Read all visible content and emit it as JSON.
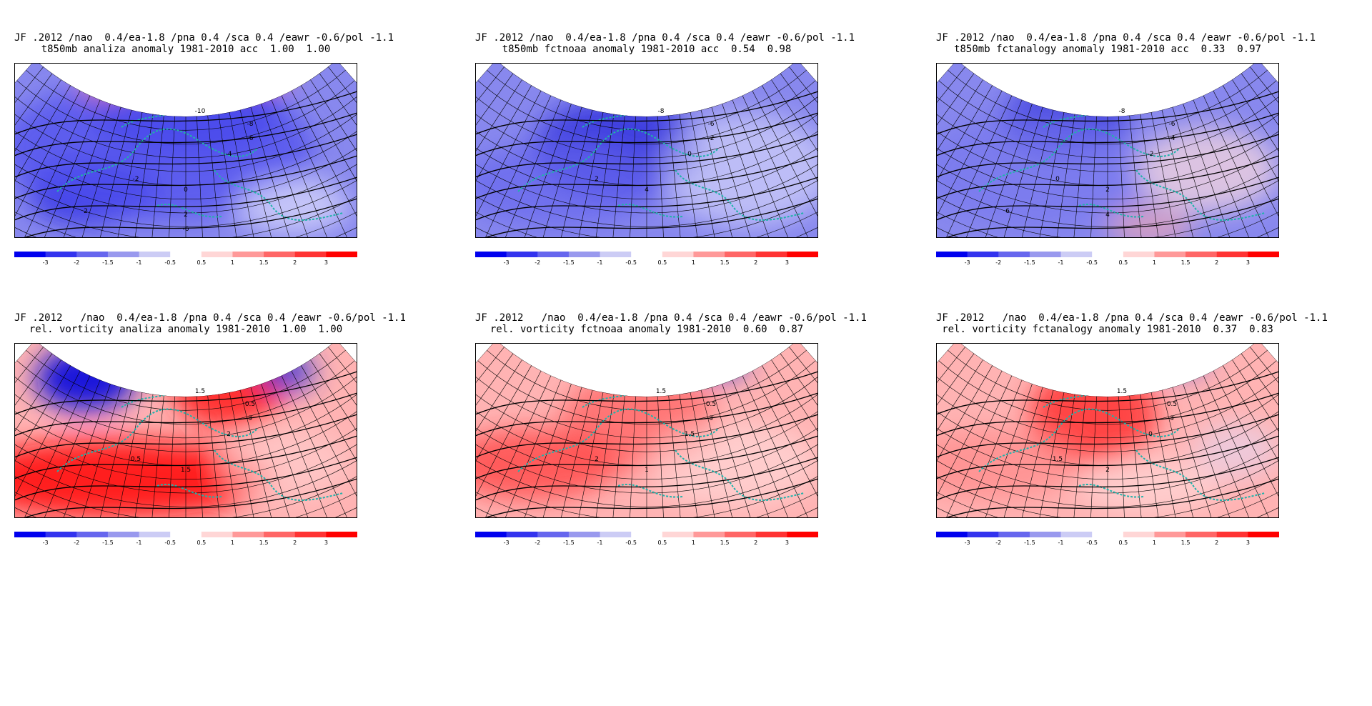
{
  "panels": [
    {
      "title1": "JF .2012 /nao  0.4/ea-1.8 /pna 0.4 /sca 0.4 /eawr -0.6/pol -1.1",
      "title2": "t850mb analiza anomaly 1981-2010 acc  1.00  1.00",
      "field": "t850",
      "map_labels": [
        "-10",
        "-8",
        "-6",
        "-4",
        "-2",
        "0",
        "2",
        "2",
        "-6"
      ]
    },
    {
      "title1": "JF .2012 /nao  0.4/ea-1.8 /pna 0.4 /sca 0.4 /eawr -0.6/pol -1.1",
      "title2": "t850mb fctnoaa anomaly 1981-2010 acc  0.54  0.98",
      "field": "t850",
      "map_labels": [
        "-8",
        "-6",
        "-2",
        "0",
        "2",
        "4"
      ]
    },
    {
      "title1": "JF .2012 /nao  0.4/ea-1.8 /pna 0.4 /sca 0.4 /eawr -0.6/pol -1.1",
      "title2": "t850mb fctanalogy anomaly 1981-2010 acc  0.33  0.97",
      "field": "t850",
      "map_labels": [
        "-8",
        "-6",
        "-4",
        "-2",
        "0",
        "2",
        "4",
        "6"
      ]
    },
    {
      "title1": "JF .2012   /nao  0.4/ea-1.8 /pna 0.4 /sca 0.4 /eawr -0.6/pol -1.1",
      "title2": "rel. vorticity analiza anomaly 1981-2010  1.00  1.00",
      "field": "vort",
      "map_labels": [
        "1.5",
        "0.5",
        "3",
        "2",
        "0.5",
        "1.5"
      ]
    },
    {
      "title1": "JF .2012   /nao  0.4/ea-1.8 /pna 0.4 /sca 0.4 /eawr -0.6/pol -1.1",
      "title2": "rel. vorticity fctnoaa anomaly 1981-2010  0.60  0.87",
      "field": "vort",
      "map_labels": [
        "1.5",
        "0.5",
        "3",
        "1.5",
        "2",
        "1"
      ]
    },
    {
      "title1": "JF .2012   /nao  0.4/ea-1.8 /pna 0.4 /sca 0.4 /eawr -0.6/pol -1.1",
      "title2": "rel. vorticity fctanalogy anomaly 1981-2010  0.37  0.83",
      "field": "vort",
      "map_labels": [
        "1.5",
        "0.5",
        "3",
        "0",
        "1.5",
        "2"
      ]
    }
  ],
  "colorbar": {
    "labels": [
      "-3",
      "-2",
      "-1.5",
      "-1",
      "-0.5",
      "0.5",
      "1",
      "1.5",
      "2",
      "3"
    ],
    "colors": [
      "#0000ee",
      "#3333ee",
      "#6666ee",
      "#9999ee",
      "#ccccf5",
      "#ffffff",
      "#ffd6d6",
      "#ff9999",
      "#ff6666",
      "#ff3333",
      "#ff0000"
    ]
  },
  "colors": {
    "cold": "#0000ff",
    "warm": "#ff0000",
    "coast": "#20b2aa",
    "contour": "#000000"
  }
}
